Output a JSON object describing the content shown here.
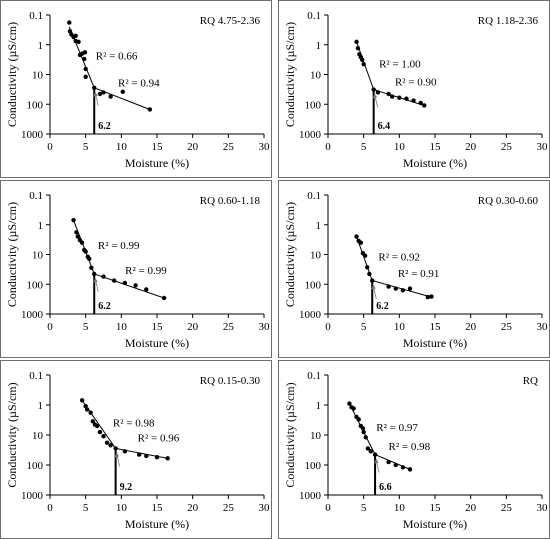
{
  "figure": {
    "panel_labels": [
      "RQ 4.75-2.36",
      "RQ 1.18-2.36",
      "RQ 0.60-1.18",
      "RQ 0.30-0.60",
      "RQ 0.15-0.30",
      "RQ"
    ],
    "line_color": "#000000",
    "frame_color": "#6e6e6e"
  },
  "chart_data": [
    {
      "type": "scatter",
      "title": "RQ 4.75-2.36",
      "xlabel": "Moisture (%)",
      "ylabel": "Conductivity (µS/cm)",
      "xlim": [
        0,
        30
      ],
      "ylim": [
        0.1,
        1000
      ],
      "yscale": "log",
      "y_inverted": true,
      "x_ticks": [
        "0",
        "5",
        "10",
        "15",
        "20",
        "25",
        "30"
      ],
      "y_ticks": [
        "0.1",
        "1",
        "10",
        "100",
        "1000"
      ],
      "points": [
        [
          2.7,
          0.18
        ],
        [
          2.8,
          0.35
        ],
        [
          3.0,
          0.45
        ],
        [
          3.3,
          0.55
        ],
        [
          3.6,
          0.5
        ],
        [
          3.6,
          0.75
        ],
        [
          4.0,
          0.8
        ],
        [
          4.2,
          2.2
        ],
        [
          4.5,
          2.0
        ],
        [
          4.9,
          1.8
        ],
        [
          4.8,
          3.0
        ],
        [
          5.0,
          6.5
        ],
        [
          5.0,
          12
        ],
        [
          6.2,
          28
        ],
        [
          7.0,
          45
        ],
        [
          7.5,
          40
        ],
        [
          8.5,
          55
        ],
        [
          10.2,
          38
        ],
        [
          14.0,
          150
        ]
      ],
      "fits": [
        {
          "x": [
            2.7,
            6.2
          ],
          "y": [
            0.25,
            28
          ],
          "r2_label": "R² = 0.66"
        },
        {
          "x": [
            6.2,
            14.0
          ],
          "y": [
            28,
            150
          ],
          "r2_label": "R² = 0.94"
        }
      ],
      "breakpoint": {
        "x": 6.2,
        "label": "6.2"
      }
    },
    {
      "type": "scatter",
      "title": "RQ 1.18-2.36",
      "xlabel": "Moisture (%)",
      "ylabel": "Conductivity (µS/cm)",
      "xlim": [
        0,
        30
      ],
      "ylim": [
        0.1,
        1000
      ],
      "yscale": "log",
      "y_inverted": true,
      "x_ticks": [
        "0",
        "5",
        "10",
        "15",
        "20",
        "25",
        "30"
      ],
      "y_ticks": [
        "0.1",
        "1",
        "10",
        "100",
        "1000"
      ],
      "points": [
        [
          4.0,
          0.8
        ],
        [
          4.2,
          1.3
        ],
        [
          4.4,
          2.1
        ],
        [
          4.6,
          2.6
        ],
        [
          4.8,
          3.2
        ],
        [
          5.0,
          4.5
        ],
        [
          6.4,
          32
        ],
        [
          7.0,
          40
        ],
        [
          8.5,
          45
        ],
        [
          9.0,
          55
        ],
        [
          10.0,
          60
        ],
        [
          11.0,
          65
        ],
        [
          12.0,
          75
        ],
        [
          13.0,
          90
        ],
        [
          13.5,
          110
        ]
      ],
      "fits": [
        {
          "x": [
            4.0,
            6.4
          ],
          "y": [
            0.8,
            32
          ],
          "r2_label": "R² = 1.00"
        },
        {
          "x": [
            6.4,
            13.5
          ],
          "y": [
            32,
            110
          ],
          "r2_label": "R² = 0.90"
        }
      ],
      "breakpoint": {
        "x": 6.4,
        "label": "6.4"
      }
    },
    {
      "type": "scatter",
      "title": "RQ 0.60-1.18",
      "xlabel": "Moisture (%)",
      "ylabel": "Conductivity (µS/cm)",
      "xlim": [
        0,
        30
      ],
      "ylim": [
        0.1,
        1000
      ],
      "yscale": "log",
      "y_inverted": true,
      "x_ticks": [
        "0",
        "5",
        "10",
        "15",
        "20",
        "25",
        "30"
      ],
      "y_ticks": [
        "0.1",
        "1",
        "10",
        "100",
        "1000"
      ],
      "points": [
        [
          3.3,
          0.7
        ],
        [
          3.7,
          1.8
        ],
        [
          3.9,
          2.5
        ],
        [
          4.2,
          3.3
        ],
        [
          4.5,
          4.0
        ],
        [
          4.8,
          7.0
        ],
        [
          5.0,
          8.0
        ],
        [
          5.3,
          12
        ],
        [
          5.5,
          14
        ],
        [
          5.8,
          28
        ],
        [
          6.2,
          45
        ],
        [
          7.5,
          55
        ],
        [
          9.0,
          75
        ],
        [
          10.5,
          90
        ],
        [
          12.0,
          110
        ],
        [
          13.5,
          150
        ],
        [
          16.0,
          290
        ]
      ],
      "fits": [
        {
          "x": [
            3.3,
            6.2
          ],
          "y": [
            0.7,
            45
          ],
          "r2_label": "R² = 0.99"
        },
        {
          "x": [
            6.2,
            16.0
          ],
          "y": [
            45,
            290
          ],
          "r2_label": "R² = 0.99"
        }
      ],
      "breakpoint": {
        "x": 6.2,
        "label": "6.2"
      }
    },
    {
      "type": "scatter",
      "title": "RQ 0.30-0.60",
      "xlabel": "Moisture (%)",
      "ylabel": "Conductivity (µS/cm)",
      "xlim": [
        0,
        30
      ],
      "ylim": [
        0.1,
        1000
      ],
      "yscale": "log",
      "y_inverted": true,
      "x_ticks": [
        "0",
        "5",
        "10",
        "15",
        "20",
        "25",
        "30"
      ],
      "y_ticks": [
        "0.1",
        "1",
        "10",
        "100",
        "1000"
      ],
      "points": [
        [
          4.0,
          2.5
        ],
        [
          4.3,
          3.5
        ],
        [
          4.6,
          4.0
        ],
        [
          4.9,
          9.0
        ],
        [
          5.2,
          11
        ],
        [
          5.5,
          27
        ],
        [
          5.8,
          45
        ],
        [
          6.2,
          75
        ],
        [
          8.5,
          120
        ],
        [
          9.5,
          140
        ],
        [
          10.5,
          160
        ],
        [
          11.5,
          140
        ],
        [
          14.0,
          270
        ],
        [
          14.5,
          260
        ]
      ],
      "fits": [
        {
          "x": [
            4.0,
            6.2
          ],
          "y": [
            2.5,
            75
          ],
          "r2_label": "R² = 0.92"
        },
        {
          "x": [
            6.2,
            14.5
          ],
          "y": [
            75,
            270
          ],
          "r2_label": "R² = 0.91"
        }
      ],
      "breakpoint": {
        "x": 6.2,
        "label": "6.2"
      }
    },
    {
      "type": "scatter",
      "title": "RQ 0.15-0.30",
      "xlabel": "Moisture (%)",
      "ylabel": "Conductivity (µS/cm)",
      "xlim": [
        0,
        30
      ],
      "ylim": [
        0.1,
        1000
      ],
      "yscale": "log",
      "y_inverted": true,
      "x_ticks": [
        "0",
        "5",
        "10",
        "15",
        "20",
        "25",
        "30"
      ],
      "y_ticks": [
        "0.1",
        "1",
        "10",
        "100",
        "1000"
      ],
      "points": [
        [
          4.5,
          0.7
        ],
        [
          5.0,
          1.1
        ],
        [
          5.2,
          1.4
        ],
        [
          5.7,
          1.8
        ],
        [
          6.0,
          3.5
        ],
        [
          6.3,
          4.5
        ],
        [
          6.6,
          5.0
        ],
        [
          7.0,
          8.0
        ],
        [
          7.5,
          11
        ],
        [
          8.0,
          18
        ],
        [
          8.5,
          22
        ],
        [
          9.2,
          28
        ],
        [
          10.5,
          35
        ],
        [
          12.5,
          45
        ],
        [
          13.5,
          50
        ],
        [
          15.0,
          55
        ],
        [
          16.5,
          60
        ]
      ],
      "fits": [
        {
          "x": [
            4.5,
            9.2
          ],
          "y": [
            0.7,
            28
          ],
          "r2_label": "R² = 0.98"
        },
        {
          "x": [
            9.2,
            16.5
          ],
          "y": [
            28,
            60
          ],
          "r2_label": "R² = 0.96"
        }
      ],
      "breakpoint": {
        "x": 9.2,
        "label": "9.2"
      }
    },
    {
      "type": "scatter",
      "title": "RQ",
      "xlabel": "Moisture (%)",
      "ylabel": "Conductivity (µS/cm)",
      "xlim": [
        0,
        30
      ],
      "ylim": [
        0.1,
        1000
      ],
      "yscale": "log",
      "y_inverted": true,
      "x_ticks": [
        "0",
        "5",
        "10",
        "15",
        "20",
        "25",
        "30"
      ],
      "y_ticks": [
        "0.1",
        "1",
        "10",
        "100",
        "1000"
      ],
      "points": [
        [
          3.0,
          0.9
        ],
        [
          3.3,
          1.2
        ],
        [
          3.6,
          1.3
        ],
        [
          4.0,
          2.5
        ],
        [
          4.3,
          3.0
        ],
        [
          4.6,
          5.0
        ],
        [
          4.9,
          6.0
        ],
        [
          5.0,
          8.0
        ],
        [
          5.3,
          12
        ],
        [
          5.6,
          28
        ],
        [
          6.0,
          35
        ],
        [
          6.6,
          45
        ],
        [
          8.5,
          80
        ],
        [
          9.5,
          100
        ],
        [
          10.5,
          120
        ],
        [
          11.5,
          140
        ]
      ],
      "fits": [
        {
          "x": [
            3.0,
            6.6
          ],
          "y": [
            0.9,
            45
          ],
          "r2_label": "R² = 0.97"
        },
        {
          "x": [
            6.6,
            11.5
          ],
          "y": [
            45,
            140
          ],
          "r2_label": "R² = 0.98"
        }
      ],
      "breakpoint": {
        "x": 6.6,
        "label": "6.6"
      }
    }
  ]
}
